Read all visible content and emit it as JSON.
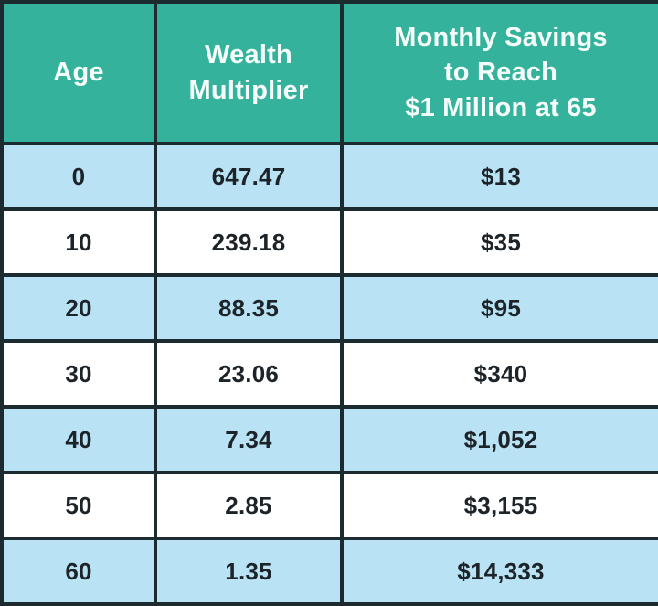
{
  "colors": {
    "header_background": "#35b29b",
    "header_text": "#f4fdf9",
    "row_alt_blue": "#b9e3f4",
    "row_alt_white": "#ffffff",
    "border": "#1c2b30",
    "cell_text": "#1d2429"
  },
  "headers": {
    "age": "Age",
    "wealth_multiplier": "Wealth\nMultiplier",
    "monthly_savings": "Monthly Savings\nto Reach\n$1 Million at 65"
  },
  "chart_data": {
    "type": "table",
    "columns": [
      "Age",
      "Wealth Multiplier",
      "Monthly Savings to Reach $1 Million at 65"
    ],
    "rows": [
      {
        "age": "0",
        "wealth_multiplier": "647.47",
        "monthly_savings": "$13"
      },
      {
        "age": "10",
        "wealth_multiplier": "239.18",
        "monthly_savings": "$35"
      },
      {
        "age": "20",
        "wealth_multiplier": "88.35",
        "monthly_savings": "$95"
      },
      {
        "age": "30",
        "wealth_multiplier": "23.06",
        "monthly_savings": "$340"
      },
      {
        "age": "40",
        "wealth_multiplier": "7.34",
        "monthly_savings": "$1,052"
      },
      {
        "age": "50",
        "wealth_multiplier": "2.85",
        "monthly_savings": "$3,155"
      },
      {
        "age": "60",
        "wealth_multiplier": "1.35",
        "monthly_savings": "$14,333"
      }
    ]
  }
}
